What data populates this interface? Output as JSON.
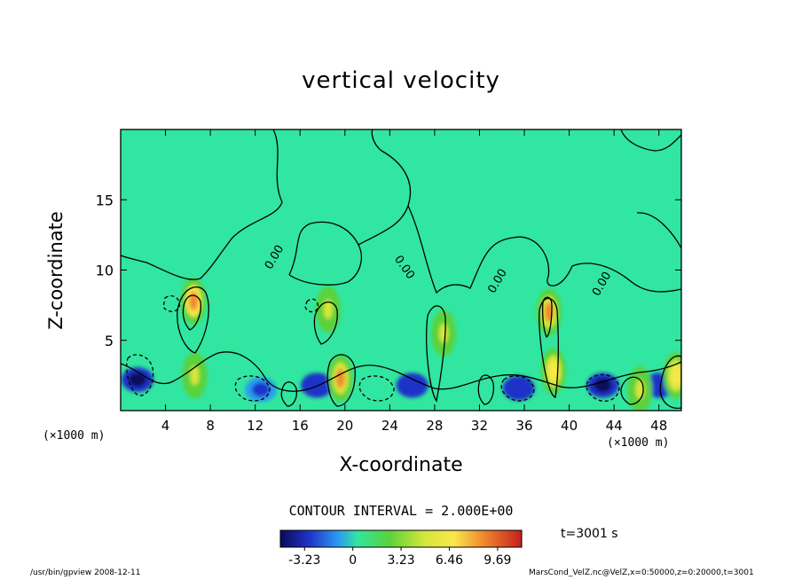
{
  "chart_data": {
    "type": "heatmap",
    "title": "vertical velocity",
    "xlabel": "X-coordinate",
    "ylabel": "Z-coordinate",
    "x_unit": "(×1000 m)",
    "y_unit": "(×1000 m)",
    "xlim": [
      0,
      50
    ],
    "ylim": [
      0,
      20
    ],
    "x_ticks": [
      4,
      8,
      12,
      16,
      20,
      24,
      28,
      32,
      36,
      40,
      44,
      48
    ],
    "y_ticks": [
      5,
      10,
      15
    ],
    "contour_interval": "CONTOUR INTERVAL = 2.000E+00",
    "contour_labels": [
      "0.00",
      "0.00",
      "0.00",
      "0.00"
    ],
    "colorbar": {
      "ticks": [
        "-3.23",
        "0",
        "3.23",
        "6.46",
        "9.69"
      ],
      "range": [
        -4.85,
        11.3
      ]
    },
    "updrafts": [
      {
        "x": 6.5,
        "z": 7.8,
        "w": 9.5
      },
      {
        "x": 6.6,
        "z": 2.5,
        "w": 5.0
      },
      {
        "x": 18.5,
        "z": 7.2,
        "w": 5.5
      },
      {
        "x": 19.6,
        "z": 2.3,
        "w": 8.5
      },
      {
        "x": 28.8,
        "z": 5.5,
        "w": 5.5
      },
      {
        "x": 38.2,
        "z": 7.0,
        "w": 9.0
      },
      {
        "x": 38.6,
        "z": 2.8,
        "w": 8.0
      },
      {
        "x": 46.3,
        "z": 1.5,
        "w": 5.0
      },
      {
        "x": 49.5,
        "z": 2.5,
        "w": 7.0
      }
    ],
    "downdrafts": [
      {
        "x": 1.5,
        "z": 2.2,
        "w": -3.5
      },
      {
        "x": 12.5,
        "z": 1.5,
        "w": -2.0
      },
      {
        "x": 17.5,
        "z": 1.8,
        "w": -3.0
      },
      {
        "x": 26.0,
        "z": 1.8,
        "w": -3.0
      },
      {
        "x": 35.5,
        "z": 1.6,
        "w": -3.0
      },
      {
        "x": 43.0,
        "z": 1.8,
        "w": -3.2
      },
      {
        "x": 48.0,
        "z": 1.8,
        "w": -3.0
      }
    ]
  },
  "time_label": "t=3001 s",
  "footer": {
    "left": "/usr/bin/gpview   2008-12-11",
    "right": "MarsCond_VelZ.nc@VelZ,x=0:50000,z=0:20000,t=3001"
  },
  "colors": {
    "background_field": "#31e6a0",
    "frame": "#000000"
  }
}
